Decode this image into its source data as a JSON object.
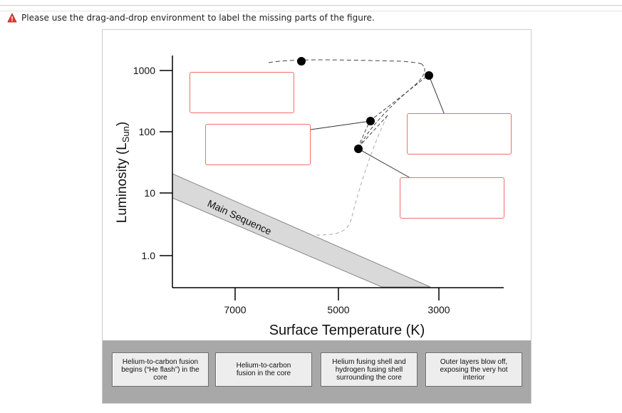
{
  "instruction": {
    "icon": "warning-icon",
    "text": "Please use the drag-and-drop environment to label the missing parts of the figure."
  },
  "figure": {
    "y_axis_label_main": "Luminosity (L",
    "y_axis_label_sub": "Sun",
    "y_axis_label_close": ")",
    "y_ticks": [
      "1000",
      "100",
      "10",
      "1.0"
    ],
    "x_ticks": [
      "7000",
      "5000",
      "3000"
    ],
    "x_axis_label": "Surface Temperature (K)",
    "main_sequence_label": "Main Sequence",
    "drop_target_border_color": "#f26d6d"
  },
  "tray": {
    "tiles": [
      {
        "line1": "Helium-to-carbon fusion",
        "line2": "begins (“He flash”) in the",
        "line3": "core"
      },
      {
        "line1": "Helium-to-carbon",
        "line2": "fusion in the core",
        "line3": ""
      },
      {
        "line1": "Helium fusing shell and",
        "line2": "hydrogen fusing shell",
        "line3": "surrounding the core"
      },
      {
        "line1": "Outer layers blow off,",
        "line2": "exposing the very hot",
        "line3": "interior"
      }
    ]
  }
}
